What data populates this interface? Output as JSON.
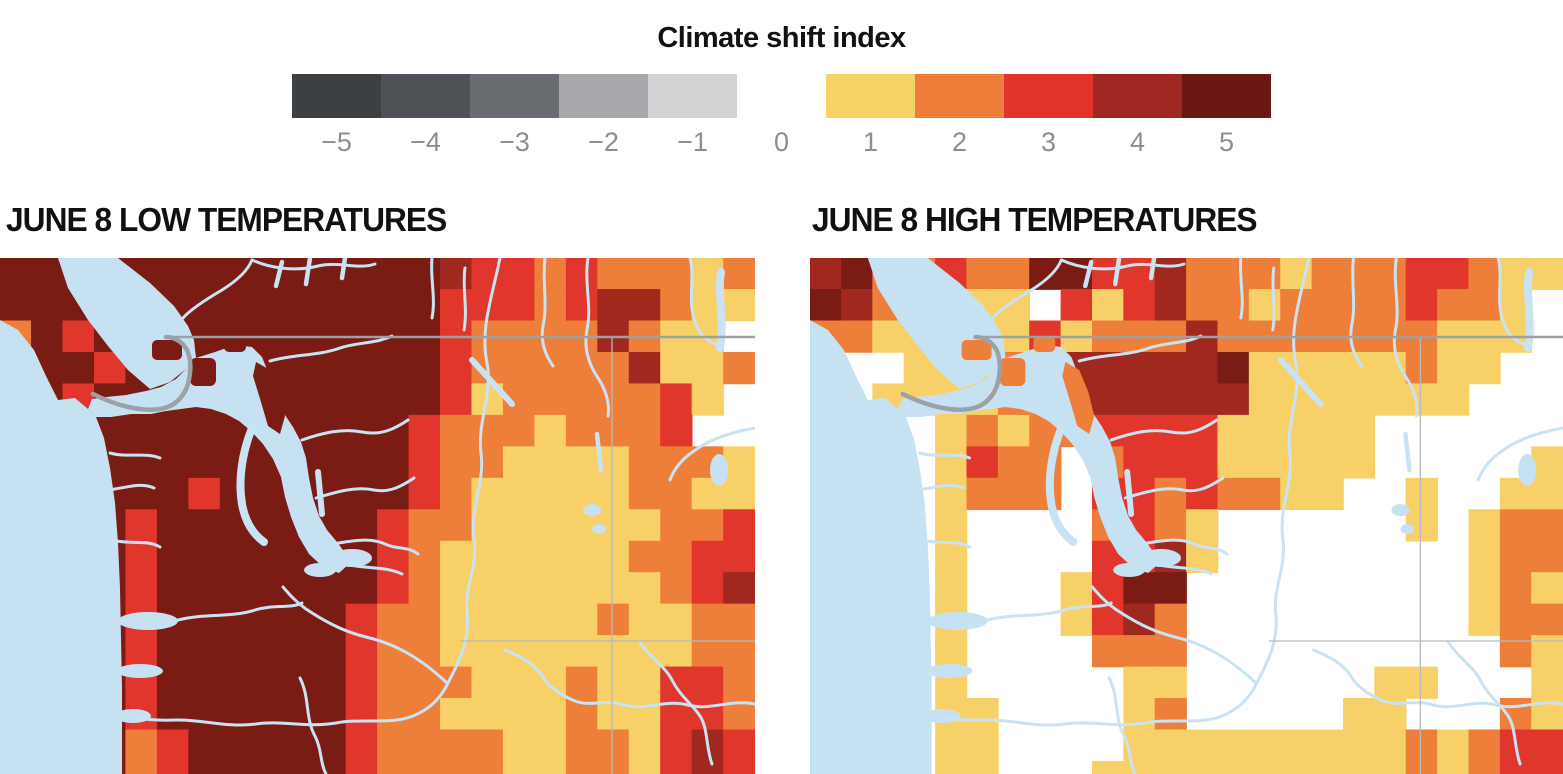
{
  "legend": {
    "title": "Climate shift index",
    "tick_labels": [
      "−5",
      "−4",
      "−3",
      "−2",
      "−1",
      "0",
      "1",
      "2",
      "3",
      "4",
      "5"
    ],
    "tick_color": "#8a8f93",
    "negative_colors": [
      "#3d4043",
      "#4e5256",
      "#686b6f",
      "#a7a9ac",
      "#d2d3d5"
    ],
    "positive_colors": [
      "#f7d267",
      "#ee7e3a",
      "#e0342a",
      "#a02722",
      "#6b1713"
    ]
  },
  "maps": [
    {
      "title": "JUNE 8 LOW TEMPERATURES",
      "island_value": "5",
      "grid": [
        "555555555555554332322212",
        "555555555555553332344211",
        "253555555555553222242110",
        "555355555555553222224112",
        "553555555555553122222310",
        "555555555555532221222300",
        "555555555555532211112221",
        "555555355555532111112211",
        "555535555555322111111223",
        "555535555555321111112233",
        "555535555555321111111234",
        "555535555553221111121122",
        "555535555553221111111122",
        "555535555553222111211332",
        "555535555553221111211332",
        "555523555553222211221343",
        "555523555553222211221343"
      ]
    },
    {
      "title": "JUNE 8 HIGH TEMPERATURES",
      "island_value": "2",
      "grid": [
        "452232255334222122233211",
        "542111103134221222232210",
        "221111131222422222221110",
        "100111204444451111121100",
        "001111224444441111111000",
        "011012122333311111000000",
        "011013220233311111000001",
        "011012220332322110010011",
        "000010000232100000010122",
        "000010000334100000000122",
        "000010001355000000000121",
        "000010001342000000000122",
        "000010000222000000000021",
        "000010000011000000110001",
        "000011000012000001100021",
        "000011000011111111121233",
        "000011000111111111121233"
      ]
    }
  ],
  "map_palette": {
    "0": "#ffffff",
    "1": "#f7d168",
    "2": "#ee7f3a",
    "3": "#e1362b",
    "4": "#a1281f",
    "5": "#7a1b14"
  },
  "geo_colors": {
    "water": "#c6e2f2",
    "river": "#c9e3f3",
    "boundary": "#9ba1a4",
    "state_line": "#b6babd"
  }
}
